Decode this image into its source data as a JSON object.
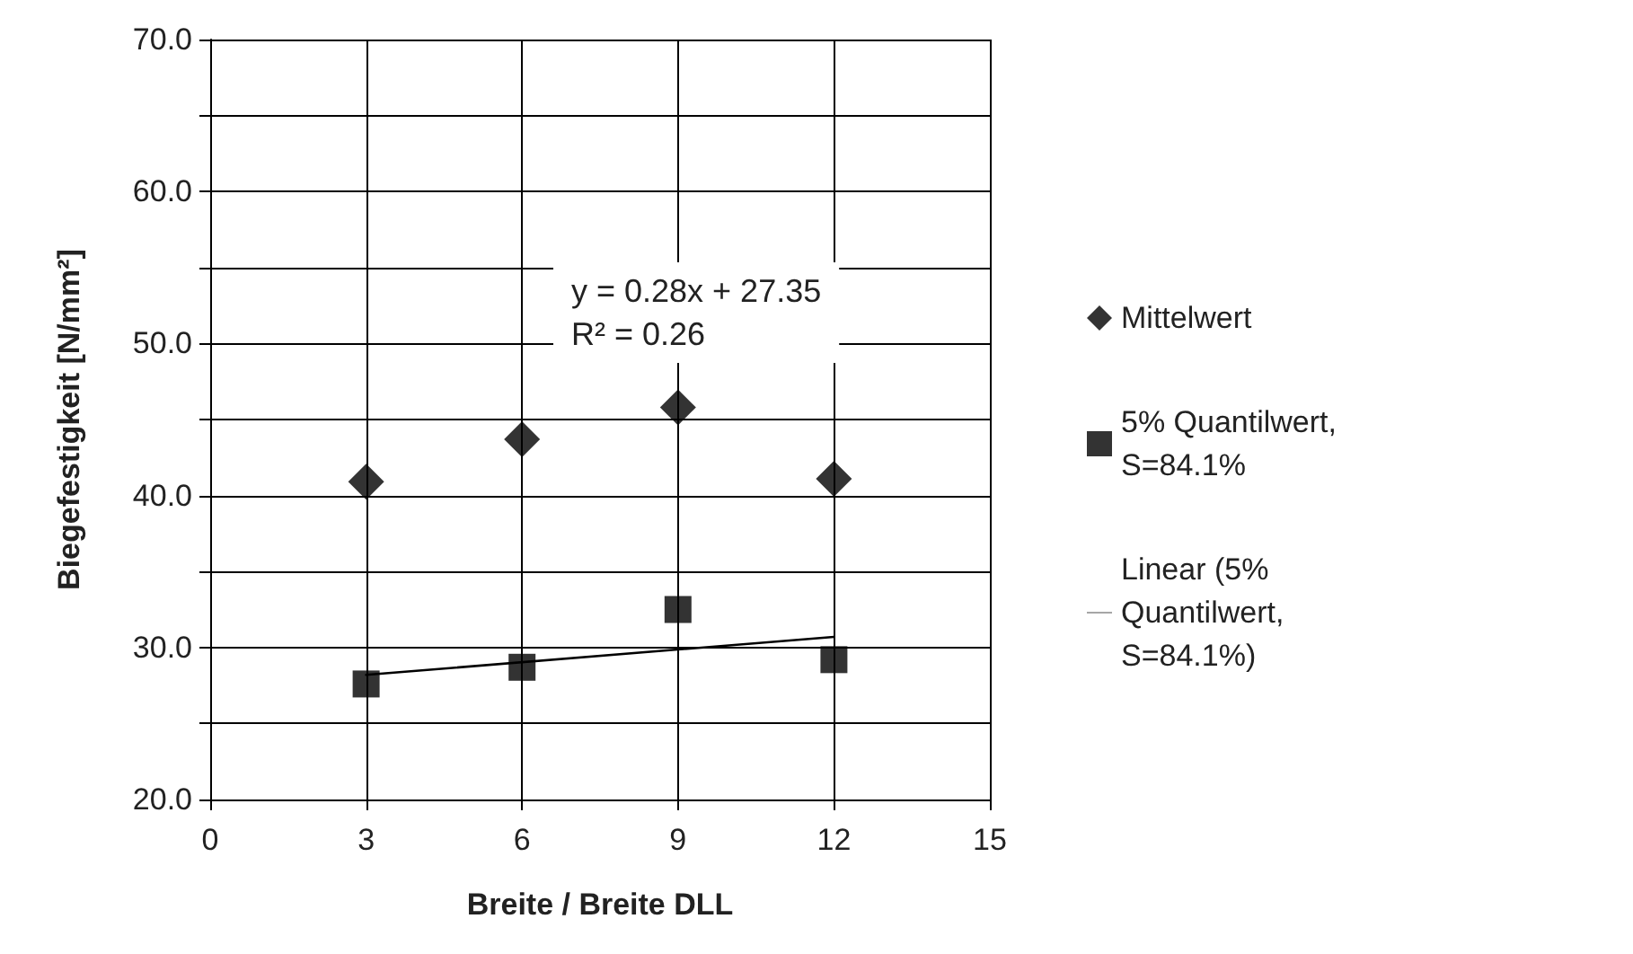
{
  "chart_data": {
    "type": "scatter",
    "xlabel": "Breite / Breite DLL",
    "ylabel": "Biegefestigkeit [N/mm²]",
    "annotations": [
      "y = 0.28x + 27.35",
      "R² = 0.26"
    ],
    "xlim": [
      0,
      15
    ],
    "xticks": [
      0,
      3,
      6,
      9,
      12,
      15
    ],
    "ylim": [
      20,
      70
    ],
    "yticks": [
      {
        "value": 20,
        "label": "20.0"
      },
      {
        "value": 25,
        "label": null
      },
      {
        "value": 30,
        "label": "30.0"
      },
      {
        "value": 35,
        "label": null
      },
      {
        "value": 40,
        "label": "40.0"
      },
      {
        "value": 45,
        "label": null
      },
      {
        "value": 50,
        "label": "50.0"
      },
      {
        "value": 55,
        "label": null
      },
      {
        "value": 60,
        "label": "60.0"
      },
      {
        "value": 65,
        "label": null
      },
      {
        "value": 70,
        "label": "70.0"
      }
    ],
    "grid": true,
    "legend": "right",
    "series": [
      {
        "name": "Mittelwert",
        "color": "#000000",
        "marker": "diamond",
        "x": [
          3,
          6,
          9,
          12
        ],
        "values": [
          40.9,
          43.7,
          45.8,
          41.1
        ]
      },
      {
        "name": "5% Quantilwert, S=84.1%",
        "color": "#000000",
        "marker": "square",
        "x": [
          3,
          6,
          9,
          12
        ],
        "values": [
          27.6,
          28.7,
          32.5,
          29.2
        ]
      },
      {
        "name": "Linear (5% Quantilwert, S=84.1%)",
        "type": "line",
        "color": "#000000",
        "marker": "none",
        "line_style": "solid",
        "x": [
          3,
          12
        ],
        "values": [
          28.2,
          30.7
        ]
      }
    ]
  }
}
